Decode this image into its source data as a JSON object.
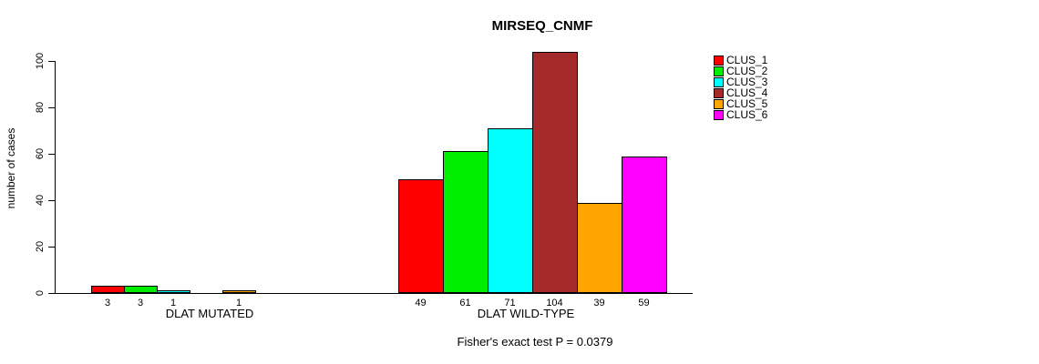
{
  "chart_data": {
    "type": "bar",
    "title": "MIRSEQ_CNMF",
    "ylabel": "number of cases",
    "ylim": [
      0,
      100
    ],
    "y_ticks": [
      0,
      20,
      40,
      60,
      80,
      100
    ],
    "annotation": "Fisher's exact test P = 0.0379",
    "legend_position": "top-right",
    "grid": false,
    "categories": [
      "DLAT MUTATED",
      "DLAT WILD-TYPE"
    ],
    "series": [
      {
        "name": "CLUS_1",
        "color": "#FF0000",
        "values": [
          3,
          49
        ]
      },
      {
        "name": "CLUS_2",
        "color": "#00EE00",
        "values": [
          3,
          61
        ]
      },
      {
        "name": "CLUS_3",
        "color": "#00FFFF",
        "values": [
          1,
          71
        ]
      },
      {
        "name": "CLUS_4",
        "color": "#A52A2A",
        "values": [
          0,
          104
        ]
      },
      {
        "name": "CLUS_5",
        "color": "#FFA500",
        "values": [
          1,
          39
        ]
      },
      {
        "name": "CLUS_6",
        "color": "#FF00FF",
        "values": [
          0,
          59
        ]
      }
    ],
    "groups": [
      {
        "label": "DLAT MUTATED",
        "values": [
          3,
          3,
          1,
          0,
          1,
          0
        ]
      },
      {
        "label": "DLAT WILD-TYPE",
        "values": [
          49,
          61,
          71,
          104,
          39,
          59
        ]
      }
    ]
  }
}
